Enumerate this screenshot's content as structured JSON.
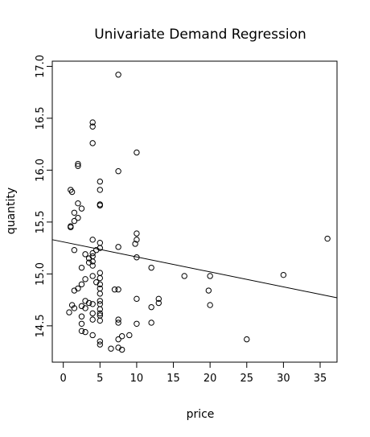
{
  "chart_data": {
    "type": "scatter",
    "title": "Univariate Demand Regression",
    "xlabel": "price",
    "ylabel": "quantity",
    "xlim": [
      -1.5,
      37.3
    ],
    "ylim": [
      14.15,
      17.05
    ],
    "x_ticks": [
      0,
      5,
      10,
      15,
      20,
      25,
      30,
      35
    ],
    "x_tick_labels": [
      "0",
      "5",
      "10",
      "15",
      "20",
      "25",
      "30",
      "35"
    ],
    "y_ticks": [
      14.5,
      15.0,
      15.5,
      16.0,
      16.5,
      17.0
    ],
    "y_tick_labels": [
      "14.5",
      "15.0",
      "15.5",
      "16.0",
      "16.5",
      "17.0"
    ],
    "grid": false,
    "legend": "none",
    "marker": "open-circle",
    "regression_line": {
      "x": [
        -1.5,
        37.3
      ],
      "y": [
        15.33,
        14.77
      ]
    },
    "series": [
      {
        "x": [
          7.5,
          4.0,
          4.0,
          4.0,
          10.0,
          2.0,
          2.0,
          7.5,
          5.0,
          5.0,
          1.0,
          1.2,
          5.0,
          5.0,
          2.0,
          2.5,
          1.5,
          2.0,
          1.5,
          1.0,
          1.0,
          10.0,
          10.0,
          4.0,
          5.0,
          9.8,
          7.5,
          5.0,
          4.5,
          4.0,
          4.0,
          3.5,
          1.5,
          3.0,
          4.0,
          3.5,
          4.0,
          10.0,
          2.5,
          12.0,
          5.0,
          36.0,
          30.0,
          20.0,
          16.5,
          4.0,
          5.0,
          3.0,
          4.5,
          5.0,
          2.5,
          5.0,
          7.0,
          7.5,
          2.0,
          1.5,
          19.8,
          5.0,
          10.0,
          13.0,
          3.0,
          5.0,
          3.5,
          4.0,
          13.0,
          5.0,
          2.5,
          20.0,
          1.2,
          5.0,
          1.5,
          3.0,
          12.0,
          4.0,
          0.8,
          5.0,
          2.5,
          7.5,
          4.0,
          5.0,
          2.5,
          7.5,
          9.0,
          12.0,
          10.0,
          5.0,
          2.5,
          3.0,
          4.0,
          25.0,
          8.0,
          7.5,
          5.0,
          6.5,
          7.5,
          8.0,
          5.0
        ],
        "y": [
          16.92,
          16.46,
          16.42,
          16.26,
          16.17,
          16.06,
          16.04,
          15.99,
          15.89,
          15.81,
          15.81,
          15.79,
          15.67,
          15.66,
          15.68,
          15.63,
          15.59,
          15.54,
          15.51,
          15.46,
          15.45,
          15.39,
          15.33,
          15.33,
          15.3,
          15.29,
          15.26,
          15.25,
          15.23,
          15.2,
          15.17,
          15.15,
          15.23,
          15.19,
          15.12,
          15.11,
          15.08,
          15.16,
          15.06,
          15.06,
          15.01,
          15.34,
          14.99,
          14.98,
          14.98,
          14.98,
          14.96,
          14.95,
          14.92,
          14.9,
          14.9,
          14.86,
          14.85,
          14.85,
          14.86,
          14.84,
          14.84,
          14.81,
          14.76,
          14.76,
          14.74,
          14.74,
          14.72,
          14.71,
          14.72,
          14.71,
          14.69,
          14.7,
          14.7,
          14.66,
          14.67,
          14.67,
          14.68,
          14.62,
          14.63,
          14.62,
          14.59,
          14.56,
          14.56,
          14.55,
          14.52,
          14.53,
          14.41,
          14.53,
          14.52,
          14.6,
          14.45,
          14.44,
          14.41,
          14.37,
          14.4,
          14.37,
          14.35,
          14.28,
          14.29,
          14.27,
          14.32
        ]
      }
    ]
  }
}
